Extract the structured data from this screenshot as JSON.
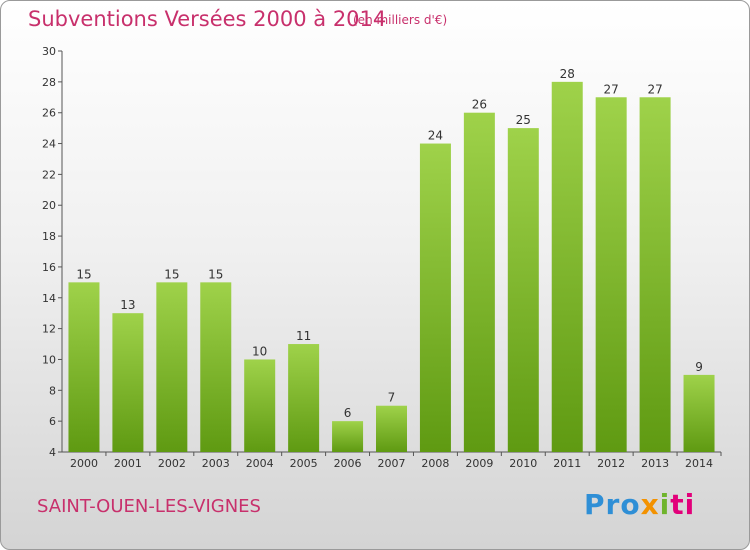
{
  "header": {
    "title": "Subventions Versées 2000 à 2014",
    "unit": "(en milliers d'€)"
  },
  "footer": {
    "place": "SAINT-OUEN-LES-VIGNES",
    "brand": [
      "Pro",
      "x",
      "i",
      "ti"
    ]
  },
  "colors": {
    "title": "#c8306c",
    "bar_light": "#9fd24a",
    "bar_dark": "#5f9a12"
  },
  "chart_data": {
    "type": "bar",
    "title": "Subventions Versées 2000 à 2014",
    "subtitle": "(en milliers d'€)",
    "categories": [
      "2000",
      "2001",
      "2002",
      "2003",
      "2004",
      "2005",
      "2006",
      "2007",
      "2008",
      "2009",
      "2010",
      "2011",
      "2012",
      "2013",
      "2014"
    ],
    "values": [
      15,
      13,
      15,
      15,
      10,
      11,
      6,
      7,
      24,
      26,
      25,
      28,
      27,
      27,
      9
    ],
    "ylim": [
      4,
      30
    ],
    "yticks": [
      4,
      6,
      8,
      10,
      12,
      14,
      16,
      18,
      20,
      22,
      24,
      26,
      28,
      30
    ],
    "grid": false,
    "legend": "none"
  }
}
